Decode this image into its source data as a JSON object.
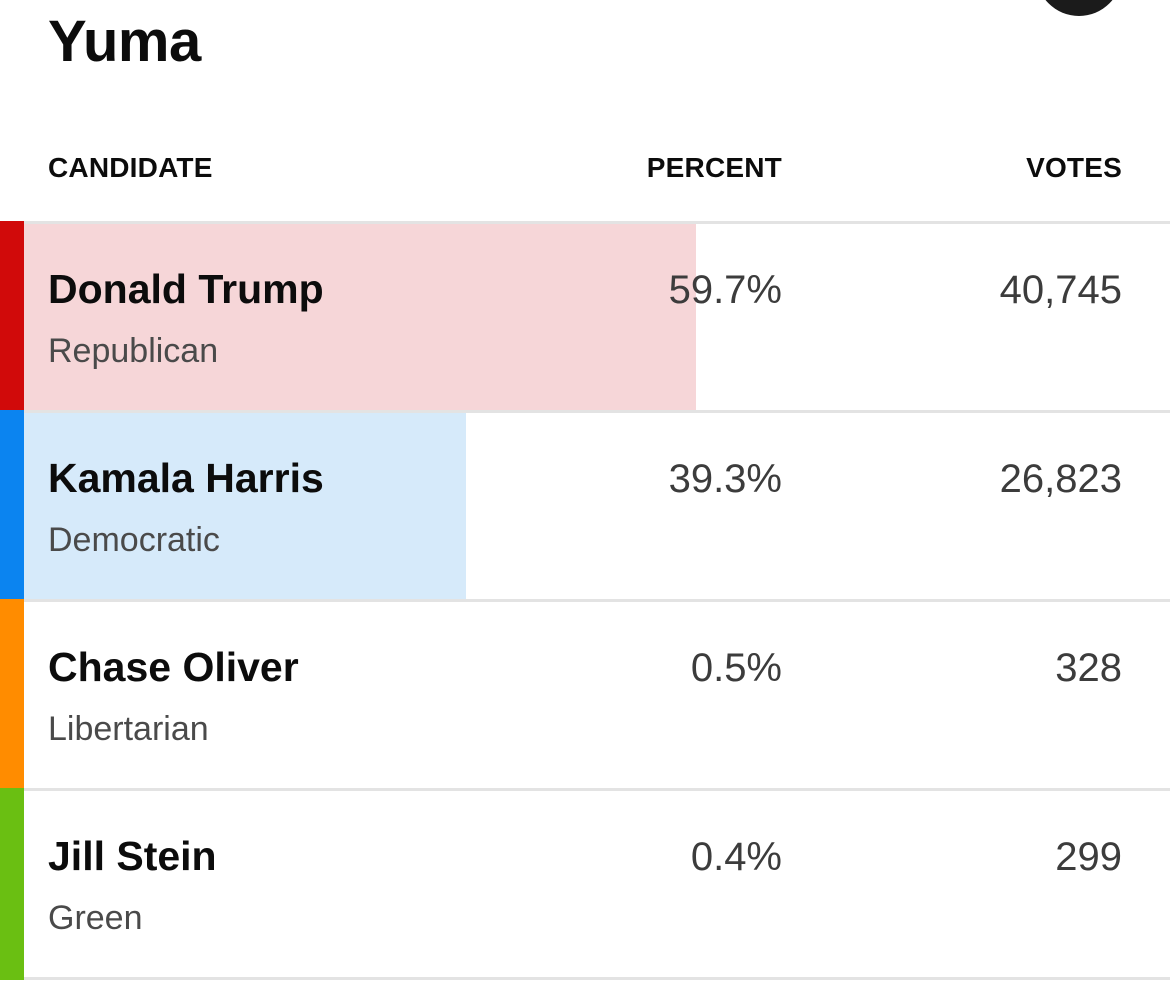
{
  "county": {
    "title": "Yuma"
  },
  "table": {
    "headers": {
      "candidate": "CANDIDATE",
      "percent": "PERCENT",
      "votes": "VOTES"
    },
    "rows": [
      {
        "name": "Donald Trump",
        "party": "Republican",
        "percent": "59.7%",
        "votes": "40,745",
        "share": 0.597,
        "stripe_color": "#d10a0a",
        "bar_color": "#f6d6d8"
      },
      {
        "name": "Kamala Harris",
        "party": "Democratic",
        "percent": "39.3%",
        "votes": "26,823",
        "share": 0.393,
        "stripe_color": "#0b84f0",
        "bar_color": "#d6eafa"
      },
      {
        "name": "Chase Oliver",
        "party": "Libertarian",
        "percent": "0.5%",
        "votes": "328",
        "share": 0.005,
        "stripe_color": "#ff8c00",
        "bar_color": "#ffffff"
      },
      {
        "name": "Jill Stein",
        "party": "Green",
        "percent": "0.4%",
        "votes": "299",
        "share": 0.004,
        "stripe_color": "#6abf12",
        "bar_color": "#ffffff"
      }
    ]
  }
}
